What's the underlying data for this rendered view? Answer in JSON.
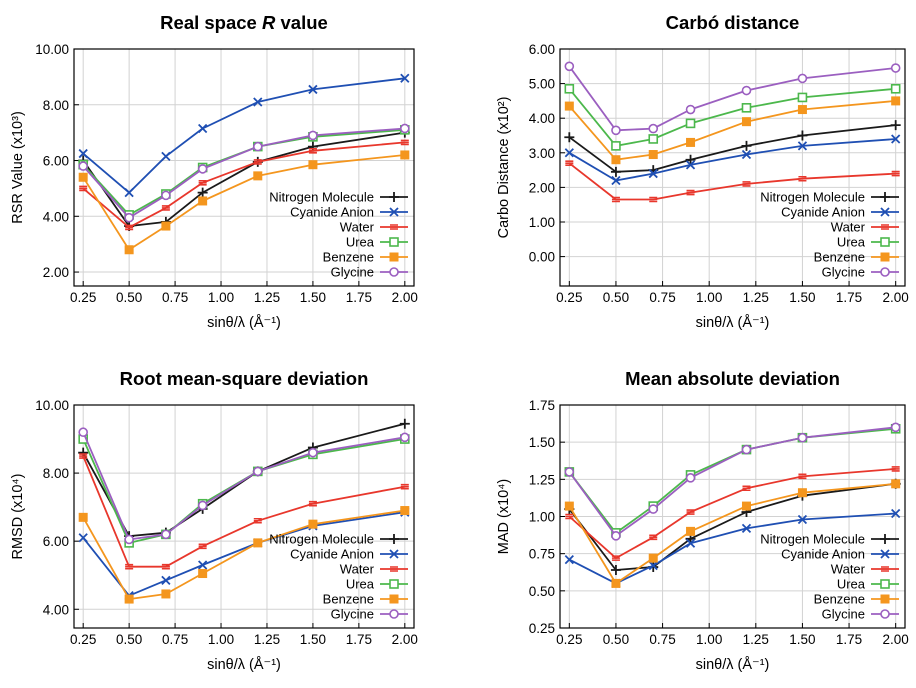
{
  "colors": {
    "Nitrogen Molecule": "#1a1a1a",
    "Cyanide Anion": "#1f4fb3",
    "Water": "#e8372c",
    "Urea": "#4cb84c",
    "Benzene": "#f4961e",
    "Glycine": "#9b5fc0"
  },
  "markers": {
    "Nitrogen Molecule": "plus",
    "Cyanide Anion": "cross",
    "Water": "hbar",
    "Urea": "square-open",
    "Benzene": "square-filled",
    "Glycine": "circle-open"
  },
  "chart_data": [
    {
      "type": "line",
      "title_parts": [
        "Real space ",
        "R",
        " value"
      ],
      "xlabel": "sinθ/λ (Å⁻¹)",
      "ylabel": "RSR Value (x10³)",
      "x": [
        0.25,
        0.5,
        0.7,
        0.9,
        1.2,
        1.5,
        2.0
      ],
      "xlim": [
        0.2,
        2.05
      ],
      "ylim": [
        1.5,
        10.0
      ],
      "xticks": [
        "0.25",
        "0.50",
        "0.75",
        "1.00",
        "1.25",
        "1.50",
        "1.75",
        "2.00"
      ],
      "yticks": [
        "2.00",
        "4.00",
        "6.00",
        "8.00",
        "10.00"
      ],
      "grid": true,
      "legend_position": "lower-right",
      "series": [
        {
          "name": "Nitrogen Molecule",
          "values": [
            6.0,
            3.65,
            3.8,
            4.85,
            5.95,
            6.5,
            7.0
          ]
        },
        {
          "name": "Cyanide Anion",
          "values": [
            6.25,
            4.85,
            6.15,
            7.15,
            8.1,
            8.55,
            8.95
          ]
        },
        {
          "name": "Water",
          "values": [
            5.0,
            3.6,
            4.3,
            5.2,
            5.95,
            6.35,
            6.65
          ]
        },
        {
          "name": "Urea",
          "values": [
            5.85,
            4.05,
            4.8,
            5.75,
            6.5,
            6.85,
            7.1
          ]
        },
        {
          "name": "Benzene",
          "values": [
            5.4,
            2.8,
            3.65,
            4.55,
            5.45,
            5.85,
            6.2
          ]
        },
        {
          "name": "Glycine",
          "values": [
            5.8,
            3.95,
            4.75,
            5.7,
            6.5,
            6.9,
            7.15
          ]
        }
      ]
    },
    {
      "type": "line",
      "title_parts": [
        "Carbó distance"
      ],
      "xlabel": "sinθ/λ (Å⁻¹)",
      "ylabel": "Carbo Distance (x10²)",
      "x": [
        0.25,
        0.5,
        0.7,
        0.9,
        1.2,
        1.5,
        2.0
      ],
      "xlim": [
        0.2,
        2.05
      ],
      "ylim": [
        -0.85,
        6.0
      ],
      "xticks": [
        "0.25",
        "0.50",
        "0.75",
        "1.00",
        "1.25",
        "1.50",
        "1.75",
        "2.00"
      ],
      "yticks": [
        "0.00",
        "1.00",
        "2.00",
        "3.00",
        "4.00",
        "5.00",
        "6.00"
      ],
      "grid": true,
      "legend_position": "lower-right",
      "series": [
        {
          "name": "Nitrogen Molecule",
          "values": [
            3.45,
            2.45,
            2.5,
            2.8,
            3.2,
            3.5,
            3.8
          ]
        },
        {
          "name": "Cyanide Anion",
          "values": [
            3.0,
            2.2,
            2.4,
            2.65,
            2.95,
            3.2,
            3.4
          ]
        },
        {
          "name": "Water",
          "values": [
            2.7,
            1.65,
            1.65,
            1.85,
            2.1,
            2.25,
            2.4
          ]
        },
        {
          "name": "Urea",
          "values": [
            4.85,
            3.2,
            3.4,
            3.85,
            4.3,
            4.6,
            4.85
          ]
        },
        {
          "name": "Benzene",
          "values": [
            4.35,
            2.8,
            2.95,
            3.3,
            3.9,
            4.25,
            4.5
          ]
        },
        {
          "name": "Glycine",
          "values": [
            5.5,
            3.65,
            3.7,
            4.25,
            4.8,
            5.15,
            5.45
          ]
        }
      ]
    },
    {
      "type": "line",
      "title_parts": [
        "Root mean-square deviation"
      ],
      "xlabel": "sinθ/λ (Å⁻¹)",
      "ylabel": "RMSD (x10⁴)",
      "x": [
        0.25,
        0.5,
        0.7,
        0.9,
        1.2,
        1.5,
        2.0
      ],
      "xlim": [
        0.2,
        2.05
      ],
      "ylim": [
        3.45,
        10.0
      ],
      "xticks": [
        "0.25",
        "0.50",
        "0.75",
        "1.00",
        "1.25",
        "1.50",
        "1.75",
        "2.00"
      ],
      "yticks": [
        "4.00",
        "6.00",
        "8.00",
        "10.00"
      ],
      "grid": true,
      "legend_position": "lower-right",
      "series": [
        {
          "name": "Nitrogen Molecule",
          "values": [
            8.6,
            6.15,
            6.25,
            6.95,
            8.05,
            8.75,
            9.45
          ]
        },
        {
          "name": "Cyanide Anion",
          "values": [
            6.1,
            4.4,
            4.85,
            5.3,
            5.95,
            6.45,
            6.85
          ]
        },
        {
          "name": "Water",
          "values": [
            8.5,
            5.25,
            5.25,
            5.85,
            6.6,
            7.1,
            7.6
          ]
        },
        {
          "name": "Urea",
          "values": [
            9.0,
            5.95,
            6.2,
            7.1,
            8.05,
            8.55,
            9.0
          ]
        },
        {
          "name": "Benzene",
          "values": [
            6.7,
            4.3,
            4.45,
            5.05,
            5.95,
            6.5,
            6.9
          ]
        },
        {
          "name": "Glycine",
          "values": [
            9.2,
            6.05,
            6.2,
            7.05,
            8.05,
            8.6,
            9.05
          ]
        }
      ]
    },
    {
      "type": "line",
      "title_parts": [
        "Mean absolute deviation"
      ],
      "xlabel": "sinθ/λ (Å⁻¹)",
      "ylabel": "MAD (x10⁴)",
      "x": [
        0.25,
        0.5,
        0.7,
        0.9,
        1.2,
        1.5,
        2.0
      ],
      "xlim": [
        0.2,
        2.05
      ],
      "ylim": [
        0.25,
        1.75
      ],
      "xticks": [
        "0.25",
        "0.50",
        "0.75",
        "1.00",
        "1.25",
        "1.50",
        "1.75",
        "2.00"
      ],
      "yticks": [
        "0.25",
        "0.50",
        "0.75",
        "1.00",
        "1.25",
        "1.50",
        "1.75"
      ],
      "grid": true,
      "legend_position": "lower-right",
      "series": [
        {
          "name": "Nitrogen Molecule",
          "values": [
            1.05,
            0.64,
            0.66,
            0.85,
            1.03,
            1.14,
            1.22
          ]
        },
        {
          "name": "Cyanide Anion",
          "values": [
            0.71,
            0.55,
            0.67,
            0.82,
            0.92,
            0.98,
            1.02
          ]
        },
        {
          "name": "Water",
          "values": [
            1.0,
            0.72,
            0.86,
            1.03,
            1.19,
            1.27,
            1.32
          ]
        },
        {
          "name": "Urea",
          "values": [
            1.3,
            0.89,
            1.07,
            1.28,
            1.45,
            1.53,
            1.59
          ]
        },
        {
          "name": "Benzene",
          "values": [
            1.07,
            0.55,
            0.72,
            0.9,
            1.07,
            1.16,
            1.22
          ]
        },
        {
          "name": "Glycine",
          "values": [
            1.3,
            0.87,
            1.05,
            1.26,
            1.45,
            1.53,
            1.6
          ]
        }
      ]
    }
  ]
}
